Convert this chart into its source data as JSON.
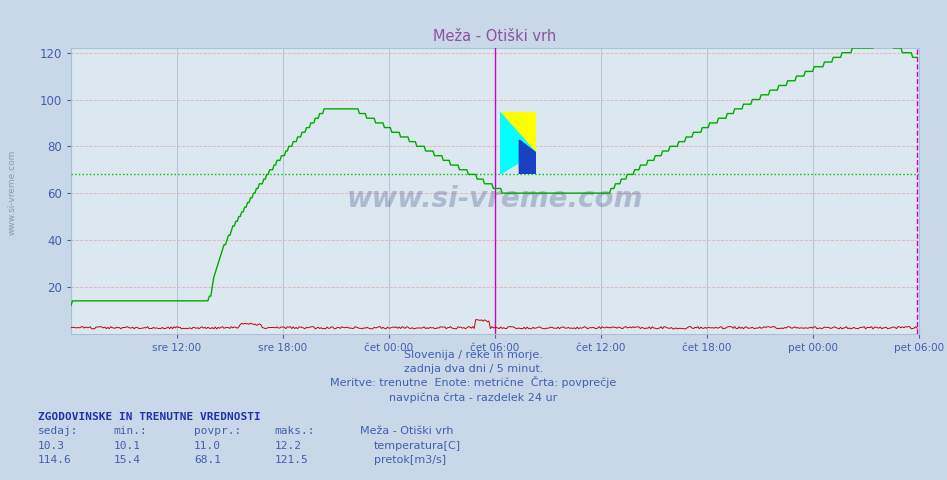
{
  "title": "Meža - Otiški vrh",
  "bg_color": "#c8d8e8",
  "plot_bg_color": "#dce8f0",
  "grid_color_red": "#e8b0b0",
  "grid_color_blue": "#a8c0d8",
  "tick_label_color": "#4060b0",
  "title_color": "#9050a0",
  "y_ticks": [
    20,
    40,
    60,
    80,
    100,
    120
  ],
  "x_tick_labels": [
    "sre 12:00",
    "sre 18:00",
    "čet 00:00",
    "čet 06:00",
    "čet 12:00",
    "čet 18:00",
    "pet 00:00",
    "pet 06:00"
  ],
  "avg_line_value": 68.1,
  "avg_line_color": "#00bb00",
  "vertical_line_color": "#cc00cc",
  "temp_color": "#cc0000",
  "flow_color": "#00aa00",
  "watermark_text": "www.si-vreme.com",
  "footer_line1": "Slovenija / reke in morje.",
  "footer_line2": "zadnja dva dni / 5 minut.",
  "footer_line3": "Meritve: trenutne  Enote: metrične  Črta: povprečje",
  "footer_line4": "navpična črta - razdelek 24 ur",
  "stats_header": "ZGODOVINSKE IN TRENUTNE VREDNOSTI",
  "stats_labels": [
    "sedaj:",
    "min.:",
    "povpr.:",
    "maks.:"
  ],
  "stats_temp": [
    10.3,
    10.1,
    11.0,
    12.2
  ],
  "stats_flow": [
    114.6,
    15.4,
    68.1,
    121.5
  ],
  "legend_title": "Meža - Otiški vrh",
  "legend_temp": "temperatura[C]",
  "legend_flow": "pretok[m3/s]"
}
